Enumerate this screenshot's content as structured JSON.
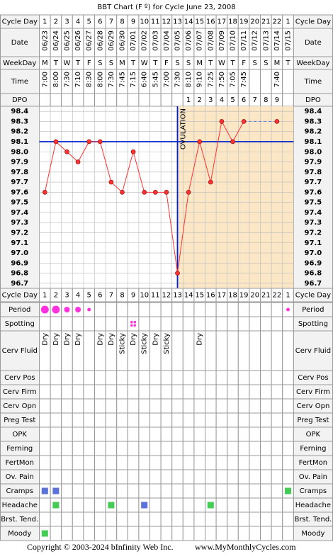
{
  "title": "BBT Chart (F º) for Cycle June 23, 2008",
  "labels": {
    "cycle_day": "Cycle Day",
    "date": "Date",
    "weekday": "WeekDay",
    "time": "Time",
    "dpo": "DPO",
    "period": "Period",
    "spotting": "Spotting",
    "cerv_fluid": "Cerv Fluid"
  },
  "dates": [
    "06/23",
    "06/24",
    "06/25",
    "06/26",
    "06/27",
    "06/28",
    "06/29",
    "06/30",
    "07/01",
    "07/02",
    "07/03",
    "07/04",
    "07/05",
    "07/06",
    "07/07",
    "07/08",
    "07/09",
    "07/10",
    "07/11",
    "07/12",
    "07/13",
    "07/14",
    "07/15"
  ],
  "weekdays": [
    "M",
    "T",
    "W",
    "T",
    "F",
    "S",
    "S",
    "M",
    "T",
    "W",
    "T",
    "F",
    "S",
    "S",
    "M",
    "T",
    "W",
    "T",
    "F",
    "S",
    "S",
    "M",
    "T"
  ],
  "times": [
    "7:00",
    "8:00",
    "7:30",
    "7:10",
    "8:30",
    "8:00",
    "7:30",
    "7:45",
    "7:15",
    "6:40",
    "5:45",
    "7:00",
    "7:30",
    "8:10",
    "9:10",
    "7:25",
    "7:50",
    "7:05",
    "7:45",
    null,
    null,
    "7:40",
    null
  ],
  "dpo": [
    null,
    null,
    null,
    null,
    null,
    null,
    null,
    null,
    null,
    null,
    null,
    null,
    null,
    1,
    2,
    3,
    4,
    5,
    6,
    7,
    8,
    9,
    null
  ],
  "chart_data": {
    "type": "line",
    "categories": [
      1,
      2,
      3,
      4,
      5,
      6,
      7,
      8,
      9,
      10,
      11,
      12,
      13,
      14,
      15,
      16,
      17,
      18,
      19,
      20,
      21,
      22,
      1
    ],
    "values": [
      97.6,
      98.1,
      98.0,
      97.9,
      98.1,
      98.1,
      97.7,
      97.6,
      98.0,
      97.6,
      97.6,
      97.6,
      96.8,
      97.6,
      98.1,
      97.7,
      98.3,
      98.1,
      98.3,
      null,
      null,
      98.3,
      null
    ],
    "color": "#ff3333",
    "ylim": [
      96.65,
      98.45
    ],
    "yticks": [
      98.4,
      98.3,
      98.2,
      98.1,
      {
        "value": 98.0,
        "label": "98.0"
      },
      97.9,
      97.8,
      97.7,
      97.6,
      97.5,
      97.4,
      97.3,
      97.2,
      97.1,
      {
        "value": 97.0,
        "label": "97.0"
      },
      96.9,
      96.8,
      96.7
    ],
    "grid": true,
    "coverline": 98.1,
    "coverline_color": "#0022cc",
    "ovulation_day": 13,
    "ovulation_label": "OVULATION",
    "shade_color": "#fbe6c6"
  },
  "period": {
    "color": "#ff33dd",
    "sizes": [
      3,
      3,
      2,
      2,
      1,
      null,
      null,
      null,
      null,
      null,
      null,
      null,
      null,
      null,
      null,
      null,
      null,
      null,
      null,
      null,
      null,
      null,
      1
    ]
  },
  "spotting": {
    "color": "#ff33dd",
    "values": [
      null,
      null,
      null,
      null,
      null,
      null,
      null,
      null,
      1,
      null,
      null,
      null,
      null,
      null,
      null,
      null,
      null,
      null,
      null,
      null,
      null,
      null,
      null
    ]
  },
  "cerv_fluid": [
    "Dry",
    "Dry",
    "Dry",
    "Dry",
    null,
    "Dry",
    "Dry",
    "Sticky",
    "Dry",
    "Sticky",
    "Dry",
    "Sticky",
    null,
    null,
    "Dry",
    null,
    null,
    null,
    null,
    null,
    null,
    null,
    null
  ],
  "symptoms": [
    {
      "label": "Cerv Pos",
      "marks": [
        null,
        null,
        null,
        null,
        null,
        null,
        null,
        null,
        null,
        null,
        null,
        null,
        null,
        null,
        null,
        null,
        null,
        null,
        null,
        null,
        null,
        null,
        null
      ]
    },
    {
      "label": "Cerv Firm",
      "marks": [
        null,
        null,
        null,
        null,
        null,
        null,
        null,
        null,
        null,
        null,
        null,
        null,
        null,
        null,
        null,
        null,
        null,
        null,
        null,
        null,
        null,
        null,
        null
      ]
    },
    {
      "label": "Cerv Opn",
      "marks": [
        null,
        null,
        null,
        null,
        null,
        null,
        null,
        null,
        null,
        null,
        null,
        null,
        null,
        null,
        null,
        null,
        null,
        null,
        null,
        null,
        null,
        null,
        null
      ]
    },
    {
      "label": "Preg Test",
      "marks": [
        null,
        null,
        null,
        null,
        null,
        null,
        null,
        null,
        null,
        null,
        null,
        null,
        null,
        null,
        null,
        null,
        null,
        null,
        null,
        null,
        null,
        null,
        null
      ]
    },
    {
      "label": "OPK",
      "marks": [
        null,
        null,
        null,
        null,
        null,
        null,
        null,
        null,
        null,
        null,
        null,
        null,
        null,
        null,
        null,
        null,
        null,
        null,
        null,
        null,
        null,
        null,
        null
      ]
    },
    {
      "label": "Ferning",
      "marks": [
        null,
        null,
        null,
        null,
        null,
        null,
        null,
        null,
        null,
        null,
        null,
        null,
        null,
        null,
        null,
        null,
        null,
        null,
        null,
        null,
        null,
        null,
        null
      ]
    },
    {
      "label": "FertMon",
      "marks": [
        null,
        null,
        null,
        null,
        null,
        null,
        null,
        null,
        null,
        null,
        null,
        null,
        null,
        null,
        null,
        null,
        null,
        null,
        null,
        null,
        null,
        null,
        null
      ]
    },
    {
      "label": "Ov. Pain",
      "marks": [
        null,
        null,
        null,
        null,
        null,
        null,
        null,
        null,
        null,
        null,
        null,
        null,
        null,
        null,
        null,
        null,
        null,
        null,
        null,
        null,
        null,
        null,
        null
      ]
    },
    {
      "label": "Cramps",
      "marks": [
        "#5b72d8",
        "#5b72d8",
        null,
        null,
        null,
        null,
        null,
        null,
        null,
        null,
        null,
        null,
        null,
        null,
        null,
        null,
        null,
        null,
        null,
        null,
        null,
        null,
        "#44cc55"
      ]
    },
    {
      "label": "Headache",
      "marks": [
        null,
        "#44cc55",
        null,
        null,
        null,
        null,
        "#44cc55",
        null,
        null,
        "#5b72d8",
        null,
        null,
        null,
        null,
        null,
        "#44cc55",
        null,
        null,
        null,
        null,
        null,
        null,
        null
      ]
    },
    {
      "label": "Brst. Tend.",
      "marks": [
        null,
        null,
        null,
        null,
        null,
        null,
        null,
        null,
        null,
        null,
        null,
        null,
        null,
        null,
        null,
        null,
        null,
        null,
        null,
        null,
        null,
        null,
        null
      ]
    },
    {
      "label": "Moody",
      "marks": [
        "#44cc55",
        null,
        null,
        null,
        null,
        null,
        null,
        null,
        null,
        null,
        null,
        null,
        null,
        null,
        null,
        null,
        null,
        null,
        null,
        null,
        null,
        null,
        null
      ]
    }
  ],
  "footer": {
    "copyright": "Copyright © 2003-2024 bInfinity Web Inc.",
    "site": "www.MyMonthlyCycles.com"
  }
}
